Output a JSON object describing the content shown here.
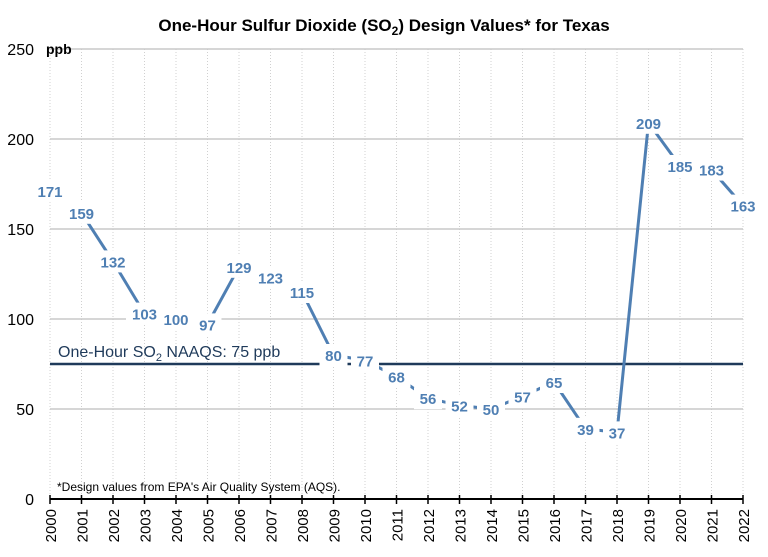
{
  "chart_data": {
    "type": "line",
    "title_parts": {
      "pre": "One-Hour Sulfur Dioxide (SO",
      "sub": "2",
      "post": ") Design Values* for Texas"
    },
    "ylabel": "ppb",
    "xlabel": "",
    "x": [
      "2000",
      "2001",
      "2002",
      "2003",
      "2004",
      "2005",
      "2006",
      "2007",
      "2008",
      "2009",
      "2010",
      "2011",
      "2012",
      "2013",
      "2014",
      "2015",
      "2016",
      "2017",
      "2018",
      "2019",
      "2020",
      "2021",
      "2022"
    ],
    "series": [
      {
        "name": "Texas SO2 Design Value",
        "color": "#4f7fb3",
        "values": [
          171,
          159,
          132,
          103,
          100,
          97,
          129,
          123,
          115,
          80,
          77,
          68,
          56,
          52,
          50,
          57,
          65,
          39,
          37,
          209,
          185,
          183,
          163
        ]
      }
    ],
    "ylim": [
      0,
      250
    ],
    "yticks": [
      0,
      50,
      100,
      150,
      200,
      250
    ],
    "grid": true,
    "reference_line": {
      "value": 75,
      "color": "#1f3a5a",
      "label_parts": {
        "pre": "One-Hour SO",
        "sub": "2",
        "post": " NAAQS: 75 ppb"
      }
    },
    "footnote": "*Design values from EPA's Air Quality System (AQS).",
    "legend": "none"
  }
}
